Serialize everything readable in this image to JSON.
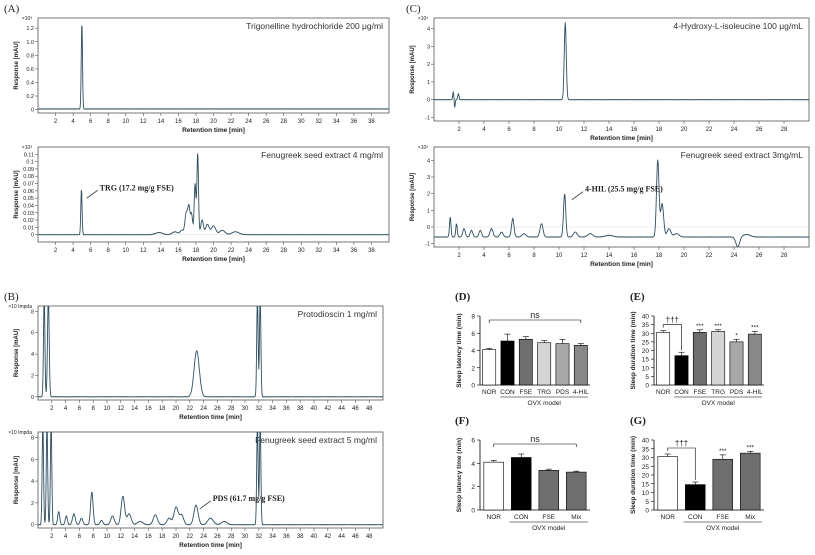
{
  "chart_data": [
    {
      "id": "A1",
      "panel_label": "(A)",
      "type": "line",
      "title": "Trigonelline hydrochloride 200 μg/ml",
      "xlabel": "Retention time [min]",
      "ylabel": "Response [mAU]",
      "yexp": "×10³",
      "xlim": [
        0,
        40
      ],
      "ylim": [
        -0.05,
        1.35
      ],
      "xticks": [
        2,
        4,
        6,
        8,
        10,
        12,
        14,
        16,
        18,
        20,
        22,
        24,
        26,
        28,
        30,
        32,
        34,
        36,
        38
      ],
      "yticks": [
        0,
        0.2,
        0.4,
        0.6,
        0.8,
        1.0,
        1.2
      ],
      "baseline": 0.01,
      "peaks": [
        {
          "x": 5.0,
          "h": 1.28,
          "w": 0.07
        }
      ],
      "annotations": []
    },
    {
      "id": "A2",
      "panel_label": "",
      "type": "line",
      "title": "Fenugreek seed extract 4 mg/ml",
      "xlabel": "Retention time [min]",
      "ylabel": "Response [mAU]",
      "yexp": "×10³",
      "xlim": [
        0,
        40
      ],
      "ylim": [
        -0.01,
        0.12
      ],
      "xticks": [
        2,
        4,
        6,
        8,
        10,
        12,
        14,
        16,
        18,
        20,
        22,
        24,
        26,
        28,
        30,
        32,
        34,
        36,
        38
      ],
      "yticks": [
        0,
        0.01,
        0.02,
        0.03,
        0.04,
        0.05,
        0.06,
        0.07,
        0.08,
        0.09,
        0.1,
        0.11
      ],
      "baseline": 0.0,
      "peaks": [
        {
          "x": 4.95,
          "h": 0.063,
          "w": 0.07
        },
        {
          "x": 13.8,
          "h": 0.003,
          "w": 0.4
        },
        {
          "x": 15.6,
          "h": 0.004,
          "w": 0.3
        },
        {
          "x": 16.4,
          "h": 0.006,
          "w": 0.2
        },
        {
          "x": 16.9,
          "h": 0.03,
          "w": 0.15
        },
        {
          "x": 17.2,
          "h": 0.036,
          "w": 0.12
        },
        {
          "x": 17.5,
          "h": 0.028,
          "w": 0.12
        },
        {
          "x": 17.9,
          "h": 0.07,
          "w": 0.1
        },
        {
          "x": 18.2,
          "h": 0.112,
          "w": 0.09
        },
        {
          "x": 18.7,
          "h": 0.02,
          "w": 0.15
        },
        {
          "x": 19.3,
          "h": 0.014,
          "w": 0.2
        },
        {
          "x": 20.0,
          "h": 0.012,
          "w": 0.25
        },
        {
          "x": 21.0,
          "h": 0.006,
          "w": 0.3
        },
        {
          "x": 22.5,
          "h": 0.004,
          "w": 0.4
        }
      ],
      "annotations": [
        {
          "text": "TRG (17.2 mg/g FSE)",
          "x": 5.2,
          "y": 0.058
        }
      ]
    },
    {
      "id": "B1",
      "panel_label": "(B)",
      "type": "line",
      "title": "Protodioscin 1 mg/ml",
      "xlabel": "Retention time [min]",
      "ylabel": "Response [mAU]",
      "yexp": "×10 Impda",
      "xlim": [
        0,
        50
      ],
      "ylim": [
        -0.3,
        8.5
      ],
      "xticks": [
        2,
        4,
        6,
        8,
        10,
        12,
        14,
        16,
        18,
        20,
        22,
        24,
        26,
        28,
        30,
        32,
        34,
        36,
        38,
        40,
        42,
        44,
        46,
        48
      ],
      "yticks": [
        0,
        2,
        4,
        6,
        8
      ],
      "baseline": 0.0,
      "peaks": [
        {
          "x": 0.9,
          "h": 9.5,
          "w": 0.1
        },
        {
          "x": 1.5,
          "h": 9.5,
          "w": 0.12
        },
        {
          "x": 23.0,
          "h": 4.3,
          "w": 0.38
        },
        {
          "x": 31.8,
          "h": 9.5,
          "w": 0.1
        },
        {
          "x": 32.2,
          "h": 9.5,
          "w": 0.1
        }
      ],
      "annotations": []
    },
    {
      "id": "B2",
      "panel_label": "",
      "type": "line",
      "title": "Fenugreek seed extract 5 mg/ml",
      "xlabel": "Retention time [min]",
      "ylabel": "Response [mAU]",
      "yexp": "×10 Impda",
      "xlim": [
        0,
        50
      ],
      "ylim": [
        -0.3,
        8.5
      ],
      "xticks": [
        2,
        4,
        6,
        8,
        10,
        12,
        14,
        16,
        18,
        20,
        22,
        24,
        26,
        28,
        30,
        32,
        34,
        36,
        38,
        40,
        42,
        44,
        46,
        48
      ],
      "yticks": [
        0,
        2,
        4,
        6,
        8
      ],
      "baseline": 0.0,
      "peaks": [
        {
          "x": 0.7,
          "h": 9.5,
          "w": 0.1
        },
        {
          "x": 1.3,
          "h": 9.5,
          "w": 0.1
        },
        {
          "x": 1.9,
          "h": 9.5,
          "w": 0.1
        },
        {
          "x": 3.0,
          "h": 1.2,
          "w": 0.15
        },
        {
          "x": 4.1,
          "h": 0.8,
          "w": 0.15
        },
        {
          "x": 5.2,
          "h": 1.0,
          "w": 0.2
        },
        {
          "x": 6.3,
          "h": 0.6,
          "w": 0.2
        },
        {
          "x": 7.8,
          "h": 3.0,
          "w": 0.18
        },
        {
          "x": 9.2,
          "h": 0.4,
          "w": 0.2
        },
        {
          "x": 10.8,
          "h": 0.8,
          "w": 0.25
        },
        {
          "x": 12.3,
          "h": 2.6,
          "w": 0.25
        },
        {
          "x": 13.2,
          "h": 1.0,
          "w": 0.3
        },
        {
          "x": 14.8,
          "h": 0.3,
          "w": 0.4
        },
        {
          "x": 17.0,
          "h": 0.9,
          "w": 0.3
        },
        {
          "x": 19.0,
          "h": 0.6,
          "w": 0.3
        },
        {
          "x": 20.0,
          "h": 1.6,
          "w": 0.3
        },
        {
          "x": 20.8,
          "h": 0.9,
          "w": 0.3
        },
        {
          "x": 22.9,
          "h": 1.8,
          "w": 0.3
        },
        {
          "x": 25.0,
          "h": 0.6,
          "w": 0.4
        },
        {
          "x": 27.0,
          "h": 0.3,
          "w": 0.4
        },
        {
          "x": 31.8,
          "h": 9.5,
          "w": 0.1
        },
        {
          "x": 32.2,
          "h": 9.5,
          "w": 0.1
        }
      ],
      "annotations": [
        {
          "text": "PDS (61.7 mg/g FSE)",
          "x": 23.0,
          "y": 2.0
        }
      ]
    },
    {
      "id": "C1",
      "panel_label": "(C)",
      "type": "line",
      "title": "4-Hydroxy-L-isoleucine 100 μg/mL",
      "xlabel": "Retention time [min]",
      "ylabel": "Response [mAU]",
      "yexp": "×10²",
      "xlim": [
        0,
        30
      ],
      "ylim": [
        -1.2,
        4.6
      ],
      "xticks": [
        2,
        4,
        6,
        8,
        10,
        12,
        14,
        16,
        18,
        20,
        22,
        24,
        26,
        28
      ],
      "yticks": [
        -1.0,
        0,
        1.0,
        2.0,
        3.0,
        4.0
      ],
      "baseline": 0.0,
      "peaks": [
        {
          "x": 1.55,
          "h": 0.45,
          "w": 0.05
        },
        {
          "x": 1.65,
          "h": -0.5,
          "w": 0.04
        },
        {
          "x": 1.95,
          "h": 0.35,
          "w": 0.05
        },
        {
          "x": 10.5,
          "h": 4.35,
          "w": 0.08
        }
      ],
      "annotations": []
    },
    {
      "id": "C2",
      "panel_label": "",
      "type": "line",
      "title": "Fenugreek seed extract 3mg/mL",
      "xlabel": "Retention time [min]",
      "ylabel": "Response [mAU]",
      "yexp": "×10²",
      "xlim": [
        0,
        30
      ],
      "ylim": [
        -1.2,
        4.8
      ],
      "xticks": [
        2,
        4,
        6,
        8,
        10,
        12,
        14,
        16,
        18,
        20,
        22,
        24,
        26,
        28
      ],
      "yticks": [
        -1.0,
        0,
        1.0,
        2.0,
        3.0,
        4.0
      ],
      "baseline": -0.6,
      "peaks": [
        {
          "x": 1.3,
          "h": 1.2,
          "w": 0.06
        },
        {
          "x": 1.8,
          "h": 0.8,
          "w": 0.06
        },
        {
          "x": 2.4,
          "h": 0.5,
          "w": 0.1
        },
        {
          "x": 3.0,
          "h": 0.4,
          "w": 0.1
        },
        {
          "x": 3.7,
          "h": 0.4,
          "w": 0.1
        },
        {
          "x": 4.6,
          "h": 0.5,
          "w": 0.12
        },
        {
          "x": 5.4,
          "h": 0.3,
          "w": 0.12
        },
        {
          "x": 6.3,
          "h": 1.1,
          "w": 0.1
        },
        {
          "x": 7.2,
          "h": 0.2,
          "w": 0.15
        },
        {
          "x": 8.6,
          "h": 0.8,
          "w": 0.12
        },
        {
          "x": 10.45,
          "h": 2.6,
          "w": 0.09
        },
        {
          "x": 11.3,
          "h": 0.3,
          "w": 0.15
        },
        {
          "x": 12.5,
          "h": 0.2,
          "w": 0.2
        },
        {
          "x": 14.0,
          "h": 0.1,
          "w": 0.3
        },
        {
          "x": 17.9,
          "h": 4.6,
          "w": 0.1
        },
        {
          "x": 18.25,
          "h": 2.0,
          "w": 0.12
        },
        {
          "x": 18.8,
          "h": 0.5,
          "w": 0.15
        },
        {
          "x": 19.4,
          "h": 0.2,
          "w": 0.2
        },
        {
          "x": 24.3,
          "h": -0.6,
          "w": 0.15
        },
        {
          "x": 25.0,
          "h": 0.15,
          "w": 0.3
        }
      ],
      "annotations": [
        {
          "text": "4-HIL (25.5 mg/g FSE)",
          "x": 10.8,
          "y": 2.0
        }
      ]
    },
    {
      "id": "D",
      "panel_label": "(D)",
      "type": "bar",
      "ylabel": "Sleep latency time (min)",
      "xlabel": "OVX model",
      "ylim": [
        0,
        8
      ],
      "yticks": [
        0,
        2,
        4,
        6,
        8
      ],
      "categories": [
        "NOR",
        "CON",
        "FSE",
        "TRG",
        "PDS",
        "4-HIL"
      ],
      "values": [
        4.1,
        5.1,
        5.3,
        4.9,
        4.8,
        4.6
      ],
      "errors": [
        0.15,
        0.8,
        0.3,
        0.25,
        0.5,
        0.2
      ],
      "colors": [
        "#ffffff",
        "#000000",
        "#6e6e6e",
        "#d4d4d4",
        "#a8a8a8",
        "#888888"
      ],
      "sig": [
        "",
        "",
        "",
        "",
        "",
        ""
      ],
      "ns_label": "ns",
      "ovx_start": 1,
      "dagger": ""
    },
    {
      "id": "E",
      "panel_label": "(E)",
      "type": "bar",
      "ylabel": "Sleep duration time (min)",
      "xlabel": "OVX model",
      "ylim": [
        0,
        40
      ],
      "yticks": [
        0,
        5,
        10,
        15,
        20,
        25,
        30,
        35,
        40
      ],
      "categories": [
        "NOR",
        "CON",
        "FSE",
        "TRG",
        "PDS",
        "4-HIL"
      ],
      "values": [
        30.5,
        17.0,
        30.5,
        31.0,
        25.0,
        29.5
      ],
      "errors": [
        1.0,
        2.0,
        1.5,
        1.0,
        1.5,
        1.5
      ],
      "colors": [
        "#ffffff",
        "#000000",
        "#6e6e6e",
        "#d4d4d4",
        "#a8a8a8",
        "#888888"
      ],
      "sig": [
        "",
        "",
        "***",
        "***",
        "*",
        "***"
      ],
      "ns_label": "",
      "ovx_start": 1,
      "dagger": "†††"
    },
    {
      "id": "F",
      "panel_label": "(F)",
      "type": "bar",
      "ylabel": "Sleep latency time (min)",
      "xlabel": "OVX model",
      "ylim": [
        0,
        6
      ],
      "yticks": [
        0,
        2,
        4,
        6
      ],
      "categories": [
        "NOR",
        "CON",
        "FSE",
        "Mix"
      ],
      "values": [
        4.1,
        4.5,
        3.4,
        3.25
      ],
      "errors": [
        0.15,
        0.3,
        0.1,
        0.08
      ],
      "colors": [
        "#ffffff",
        "#000000",
        "#6e6e6e",
        "#6e6e6e"
      ],
      "sig": [
        "",
        "",
        "",
        ""
      ],
      "ns_label": "ns",
      "ovx_start": 1,
      "dagger": ""
    },
    {
      "id": "G",
      "panel_label": "(G)",
      "type": "bar",
      "ylabel": "Sleep duration time (min)",
      "xlabel": "OVX model",
      "ylim": [
        0,
        40
      ],
      "yticks": [
        0,
        5,
        10,
        15,
        20,
        25,
        30,
        35,
        40
      ],
      "categories": [
        "NOR",
        "CON",
        "FSE",
        "Mix"
      ],
      "values": [
        30.5,
        14.5,
        29.0,
        32.5
      ],
      "errors": [
        1.5,
        1.5,
        2.5,
        1.0
      ],
      "colors": [
        "#ffffff",
        "#000000",
        "#6e6e6e",
        "#6e6e6e"
      ],
      "sig": [
        "",
        "",
        "***",
        "***"
      ],
      "ns_label": "",
      "ovx_start": 1,
      "dagger": "†††"
    }
  ]
}
